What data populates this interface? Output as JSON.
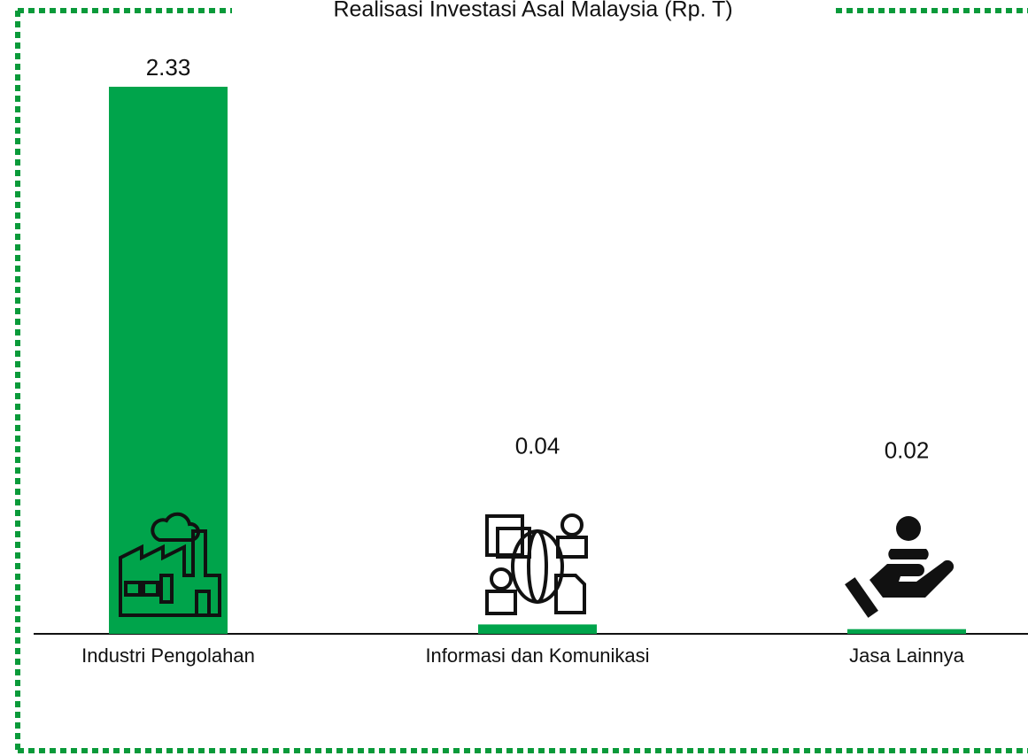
{
  "chart_data": {
    "type": "bar",
    "title": "Realisasi Investasi Asal Malaysia (Rp. T)",
    "categories": [
      "Industri Pengolahan",
      "Informasi dan Komunikasi",
      "Jasa Lainnya"
    ],
    "values": [
      2.33,
      0.04,
      0.02
    ],
    "color": "#00a44b"
  }
}
